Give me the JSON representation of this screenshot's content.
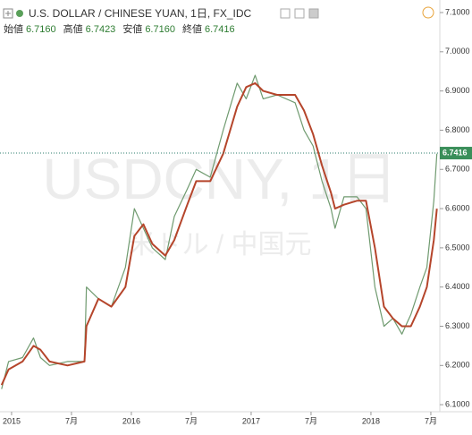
{
  "chart_data": {
    "type": "line",
    "title": "U.S. DOLLAR / CHINESE YUAN, 1日, FX_IDC",
    "ohlc": [
      {
        "label": "始値",
        "value": "6.7160"
      },
      {
        "label": "高値",
        "value": "6.7423"
      },
      {
        "label": "安値",
        "value": "6.7160"
      },
      {
        "label": "終値",
        "value": "6.7416"
      }
    ],
    "watermark": [
      "USDCNY, 1日",
      "米ドル / 中国元"
    ],
    "x": [
      -1.0,
      -0.3,
      1.1,
      2.2,
      2.9,
      3.8,
      5.6,
      7.3,
      7.5,
      8.7,
      10.0,
      11.4,
      12.3,
      13.2,
      14.1,
      15.4,
      16.3,
      17.6,
      18.5,
      19.9,
      21.2,
      22.6,
      23.5,
      24.4,
      25.2,
      26.6,
      28.4,
      29.3,
      30.2,
      31.1,
      32.0,
      32.4,
      33.3,
      34.6,
      35.5,
      36.4,
      37.3,
      38.2,
      39.1,
      40.0,
      40.9,
      41.6,
      42.3,
      42.6
    ],
    "series": [
      {
        "color": "#6f9a6f",
        "values": [
          6.14,
          6.21,
          6.22,
          6.27,
          6.22,
          6.2,
          6.21,
          6.21,
          6.4,
          6.37,
          6.35,
          6.45,
          6.6,
          6.55,
          6.5,
          6.47,
          6.58,
          6.65,
          6.7,
          6.68,
          6.8,
          6.92,
          6.88,
          6.94,
          6.88,
          6.89,
          6.87,
          6.8,
          6.76,
          6.67,
          6.6,
          6.55,
          6.63,
          6.63,
          6.6,
          6.4,
          6.3,
          6.32,
          6.28,
          6.33,
          6.4,
          6.45,
          6.62,
          6.74
        ]
      },
      {
        "color": "#b5452b",
        "values": [
          6.15,
          6.19,
          6.21,
          6.25,
          6.24,
          6.21,
          6.2,
          6.21,
          6.3,
          6.37,
          6.35,
          6.4,
          6.53,
          6.56,
          6.51,
          6.48,
          6.52,
          6.61,
          6.67,
          6.67,
          6.74,
          6.86,
          6.91,
          6.92,
          6.9,
          6.89,
          6.89,
          6.85,
          6.79,
          6.71,
          6.64,
          6.6,
          6.61,
          6.62,
          6.62,
          6.5,
          6.35,
          6.32,
          6.3,
          6.3,
          6.35,
          6.4,
          6.52,
          6.6
        ]
      }
    ],
    "last_price": {
      "value": 6.7416,
      "label": "6.7416"
    },
    "xlim": [
      -1.16,
      42.9
    ],
    "xticks": [
      {
        "value": 0,
        "label": "2015"
      },
      {
        "value": 6,
        "label": "7月"
      },
      {
        "value": 12,
        "label": "2016"
      },
      {
        "value": 18,
        "label": "7月"
      },
      {
        "value": 24,
        "label": "2017"
      },
      {
        "value": 30,
        "label": "7月"
      },
      {
        "value": 36,
        "label": "2018"
      },
      {
        "value": 42,
        "label": "7月"
      }
    ],
    "ylim": [
      6.082,
      7.132
    ],
    "yticks": [
      {
        "value": 7.1,
        "label": "7.1000"
      },
      {
        "value": 7.0,
        "label": "7.0000"
      },
      {
        "value": 6.9,
        "label": "6.9000"
      },
      {
        "value": 6.8,
        "label": "6.8000"
      },
      {
        "value": 6.7,
        "label": "6.7000"
      },
      {
        "value": 6.6,
        "label": "6.6000"
      },
      {
        "value": 6.5,
        "label": "6.5000"
      },
      {
        "value": 6.4,
        "label": "6.4000"
      },
      {
        "value": 6.3,
        "label": "6.3000"
      },
      {
        "value": 6.2,
        "label": "6.2000"
      },
      {
        "value": 6.1,
        "label": "6.1000"
      }
    ]
  }
}
